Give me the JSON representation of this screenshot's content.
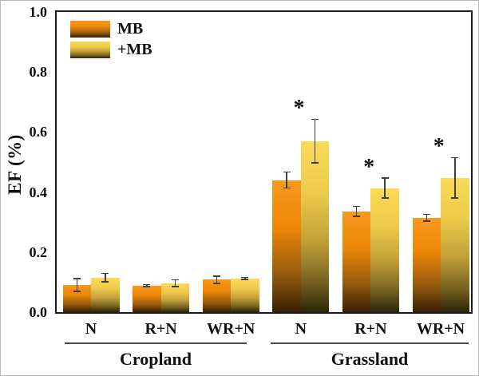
{
  "colors": {
    "background": "#ffffff",
    "frame": "#1c1c1c",
    "error_bar": "#3f3f3f",
    "text": "#111111",
    "group_line": "#4a4a4a",
    "mb_top": "#F8991E",
    "mb_bottom": "#371F03",
    "pmb_top": "#FBDA58",
    "pmb_bottom": "#2B2408"
  },
  "chart_data": {
    "type": "bar",
    "title": "",
    "xlabel": "",
    "ylabel": "EF (%)",
    "ylim": [
      0,
      1.0
    ],
    "yticks": [
      0.0,
      0.2,
      0.4,
      0.6,
      0.8,
      1.0
    ],
    "grid": false,
    "legend_position": "top-left-inside",
    "categories": [
      "N",
      "R+N",
      "WR+N",
      "N",
      "R+N",
      "WR+N"
    ],
    "category_groups": [
      "Cropland",
      "Cropland",
      "Cropland",
      "Grassland",
      "Grassland",
      "Grassland"
    ],
    "group_labels": [
      "Cropland",
      "Grassland"
    ],
    "series": [
      {
        "name": "MB",
        "values": [
          0.09,
          0.089,
          0.108,
          0.44,
          0.336,
          0.315
        ],
        "errors": [
          0.022,
          0.004,
          0.013,
          0.027,
          0.017,
          0.012
        ],
        "gradient": [
          "#F8991E 0%",
          "#EE8708 35%",
          "#9A5D0E 70%",
          "#371F03 100%"
        ]
      },
      {
        "name": "+MB",
        "values": [
          0.115,
          0.096,
          0.112,
          0.57,
          0.413,
          0.447
        ],
        "errors": [
          0.014,
          0.012,
          0.004,
          0.073,
          0.034,
          0.068
        ],
        "gradient": [
          "#FBDA58 0%",
          "#EECA4C 30%",
          "#C3A139 58%",
          "#776320 82%",
          "#2B2408 100%"
        ]
      }
    ],
    "significance": {
      "marker": "*",
      "series_index": 1,
      "category_indexes": [
        3,
        4,
        5
      ]
    }
  }
}
